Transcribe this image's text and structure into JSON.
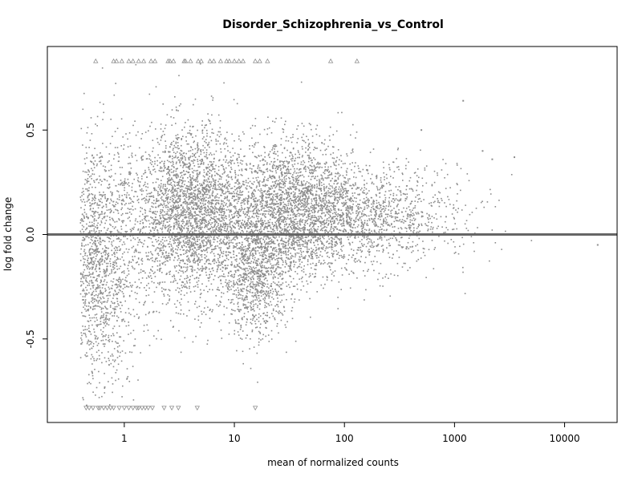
{
  "chart_data": {
    "type": "scatter",
    "title": "Disorder_Schizophrenia_vs_Control",
    "xlabel": "mean of normalized counts",
    "ylabel": "log fold change",
    "x_scale": "log",
    "xlim": [
      0.2,
      30000
    ],
    "ylim": [
      -0.9,
      0.9
    ],
    "x_ticks": [
      {
        "value": 1,
        "label": "1"
      },
      {
        "value": 10,
        "label": "10"
      },
      {
        "value": 100,
        "label": "100"
      },
      {
        "value": 1000,
        "label": "1000"
      },
      {
        "value": 10000,
        "label": "10000"
      }
    ],
    "y_ticks": [
      {
        "value": -0.5,
        "label": "-0.5"
      },
      {
        "value": 0.0,
        "label": "0.0"
      },
      {
        "value": 0.5,
        "label": "0.5"
      }
    ],
    "reference_line_y": 0,
    "point_color": "#8c8c8c",
    "line_color": "#666666",
    "clipped_marker_y": 0.83,
    "clipped_marker_y_low": -0.83,
    "clipped_high_x": [
      0.55,
      0.8,
      0.85,
      0.95,
      1.1,
      1.2,
      1.35,
      1.5,
      1.75,
      1.9,
      2.5,
      2.6,
      2.8,
      3.5,
      3.6,
      4.0,
      4.7,
      5.0,
      6.0,
      6.5,
      7.5,
      8.5,
      9.0,
      10.0,
      11.0,
      12.0,
      15.5,
      17.0,
      20.0,
      75,
      130
    ],
    "clipped_low_x": [
      0.45,
      0.48,
      0.52,
      0.58,
      0.6,
      0.65,
      0.7,
      0.75,
      0.8,
      0.9,
      1.0,
      1.1,
      1.2,
      1.3,
      1.35,
      1.45,
      1.55,
      1.65,
      1.8,
      2.3,
      2.7,
      3.1,
      4.6,
      15.5
    ],
    "points_note": "dense point cloud; representative points generated in script",
    "clusters": [
      {
        "x_log_mean": -0.25,
        "x_log_sd": 0.2,
        "y_mean": -0.15,
        "y_sd": 0.3,
        "n": 1800
      },
      {
        "x_log_mean": 0.6,
        "x_log_sd": 0.25,
        "y_mean": 0.1,
        "y_sd": 0.2,
        "n": 2800
      },
      {
        "x_log_mean": 1.2,
        "x_log_sd": 0.15,
        "y_mean": -0.2,
        "y_sd": 0.15,
        "n": 900
      },
      {
        "x_log_mean": 1.5,
        "x_log_sd": 0.3,
        "y_mean": 0.12,
        "y_sd": 0.17,
        "n": 2600
      },
      {
        "x_log_mean": 2.2,
        "x_log_sd": 0.35,
        "y_mean": 0.08,
        "y_sd": 0.12,
        "n": 1100
      },
      {
        "x_log_mean": 2.9,
        "x_log_sd": 0.25,
        "y_mean": 0.12,
        "y_sd": 0.12,
        "n": 120
      }
    ],
    "outliers": [
      {
        "x": 20000,
        "y": -0.05
      },
      {
        "x": 3500,
        "y": 0.37
      },
      {
        "x": 2200,
        "y": 0.36
      },
      {
        "x": 1200,
        "y": 0.64
      },
      {
        "x": 1800,
        "y": 0.4
      },
      {
        "x": 500,
        "y": 0.5
      }
    ]
  }
}
